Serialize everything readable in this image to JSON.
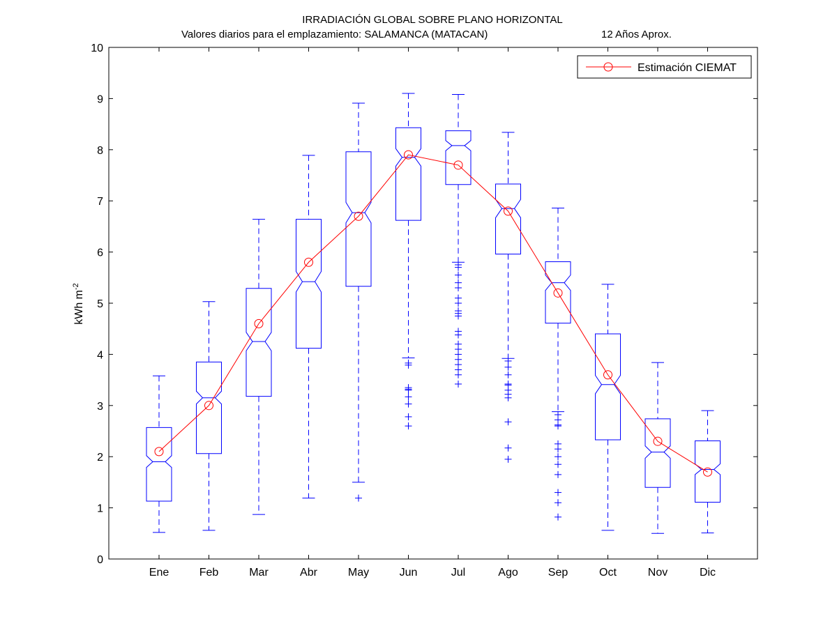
{
  "chart_data": {
    "type": "boxplot",
    "title": "IRRADIACIÓN GLOBAL SOBRE PLANO HORIZONTAL",
    "subtitle": "Valores diarios para el emplazamiento:  SALAMANCA (MATACAN)",
    "subtitle_note": "12 Años Aprox.",
    "ylabel_main": "kWh m",
    "ylabel_sup": "-2",
    "xlabel": "",
    "ylim": [
      0,
      10
    ],
    "yticks": [
      0,
      1,
      2,
      3,
      4,
      5,
      6,
      7,
      8,
      9,
      10
    ],
    "grid": false,
    "legend_position": "top-right",
    "categories": [
      "Ene",
      "Feb",
      "Mar",
      "Abr",
      "May",
      "Jun",
      "Jul",
      "Ago",
      "Sep",
      "Oct",
      "Nov",
      "Dic"
    ],
    "boxes": [
      {
        "min": 0.52,
        "q1": 1.13,
        "median": 1.9,
        "q3": 2.57,
        "max": 3.58,
        "notch_low": 1.79,
        "notch_high": 2.02,
        "outliers": []
      },
      {
        "min": 0.56,
        "q1": 2.06,
        "median": 3.15,
        "q3": 3.85,
        "max": 5.03,
        "notch_low": 3.03,
        "notch_high": 3.28,
        "outliers": []
      },
      {
        "min": 0.87,
        "q1": 3.18,
        "median": 4.25,
        "q3": 5.29,
        "max": 6.64,
        "notch_low": 4.07,
        "notch_high": 4.43,
        "outliers": []
      },
      {
        "min": 1.19,
        "q1": 4.12,
        "median": 5.42,
        "q3": 6.64,
        "max": 7.89,
        "notch_low": 5.22,
        "notch_high": 5.62,
        "outliers": []
      },
      {
        "min": 1.5,
        "q1": 5.33,
        "median": 6.77,
        "q3": 7.96,
        "max": 8.91,
        "notch_low": 6.57,
        "notch_high": 6.97,
        "outliers": [
          1.19
        ]
      },
      {
        "min": 3.93,
        "q1": 6.62,
        "median": 7.85,
        "q3": 8.43,
        "max": 9.1,
        "notch_low": 7.68,
        "notch_high": 8.02,
        "outliers": [
          3.83,
          3.79,
          3.35,
          3.32,
          3.3,
          3.17,
          3.03,
          2.78,
          2.6
        ]
      },
      {
        "min": 5.8,
        "q1": 7.32,
        "median": 8.08,
        "q3": 8.37,
        "max": 9.08,
        "notch_low": 7.98,
        "notch_high": 8.18,
        "outliers": [
          5.75,
          5.7,
          5.55,
          5.4,
          5.3,
          5.1,
          5.0,
          4.85,
          4.8,
          4.75,
          4.45,
          4.38,
          4.2,
          4.1,
          4.0,
          3.9,
          3.8,
          3.7,
          3.6,
          3.42
        ]
      },
      {
        "min": 3.92,
        "q1": 5.96,
        "median": 6.85,
        "q3": 7.33,
        "max": 8.34,
        "notch_low": 6.67,
        "notch_high": 7.03,
        "outliers": [
          3.87,
          3.75,
          3.6,
          3.42,
          3.4,
          3.3,
          3.22,
          3.15,
          2.68,
          2.17,
          1.95
        ]
      },
      {
        "min": 2.88,
        "q1": 4.61,
        "median": 5.4,
        "q3": 5.81,
        "max": 6.86,
        "notch_low": 5.25,
        "notch_high": 5.55,
        "outliers": [
          2.82,
          2.72,
          2.62,
          2.6,
          2.25,
          2.15,
          2.0,
          1.85,
          1.65,
          1.3,
          1.1,
          0.82
        ]
      },
      {
        "min": 0.56,
        "q1": 2.33,
        "median": 3.41,
        "q3": 4.4,
        "max": 5.37,
        "notch_low": 3.23,
        "notch_high": 3.59,
        "outliers": []
      },
      {
        "min": 0.5,
        "q1": 1.4,
        "median": 2.09,
        "q3": 2.74,
        "max": 3.84,
        "notch_low": 1.97,
        "notch_high": 2.21,
        "outliers": []
      },
      {
        "min": 0.51,
        "q1": 1.11,
        "median": 1.75,
        "q3": 2.31,
        "max": 2.9,
        "notch_low": 1.65,
        "notch_high": 1.86,
        "outliers": []
      }
    ],
    "series": [
      {
        "name": "Estimación CIEMAT",
        "color": "#ff0000",
        "marker": "circle",
        "values": [
          2.1,
          3.0,
          4.6,
          5.8,
          6.7,
          7.9,
          7.7,
          6.8,
          5.2,
          3.6,
          2.3,
          1.7
        ]
      }
    ],
    "box_color": "#0000ff"
  }
}
